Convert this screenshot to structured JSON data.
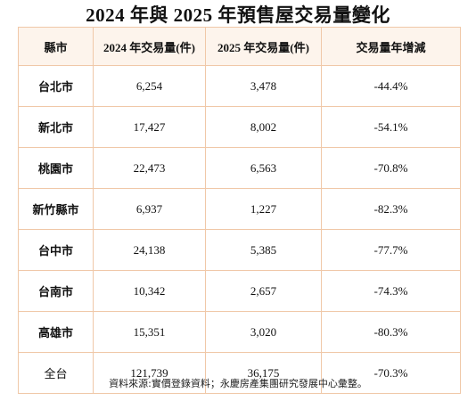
{
  "title": "2024 年與 2025 年預售屋交易量變化",
  "headers": [
    "縣市",
    "2024 年交易量(件)",
    "2025 年交易量(件)",
    "交易量年增減"
  ],
  "rows": [
    {
      "region": "台北市",
      "v2024": "6,254",
      "v2025": "3,478",
      "change": "-44.4%"
    },
    {
      "region": "新北市",
      "v2024": "17,427",
      "v2025": "8,002",
      "change": "-54.1%"
    },
    {
      "region": "桃園市",
      "v2024": "22,473",
      "v2025": "6,563",
      "change": "-70.8%"
    },
    {
      "region": "新竹縣市",
      "v2024": "6,937",
      "v2025": "1,227",
      "change": "-82.3%"
    },
    {
      "region": "台中市",
      "v2024": "24,138",
      "v2025": "5,385",
      "change": "-77.7%"
    },
    {
      "region": "台南市",
      "v2024": "10,342",
      "v2025": "2,657",
      "change": "-74.3%"
    },
    {
      "region": "高雄市",
      "v2024": "15,351",
      "v2025": "3,020",
      "change": "-80.3%"
    },
    {
      "region": "全台",
      "v2024": "121,739",
      "v2025": "36,175",
      "change": "-70.3%"
    }
  ],
  "source": "資料來源:實價登錄資料；永慶房產集團研究發展中心彙整。",
  "colors": {
    "border": "#f0c8a8",
    "header_bg": "#fdf4ec"
  }
}
